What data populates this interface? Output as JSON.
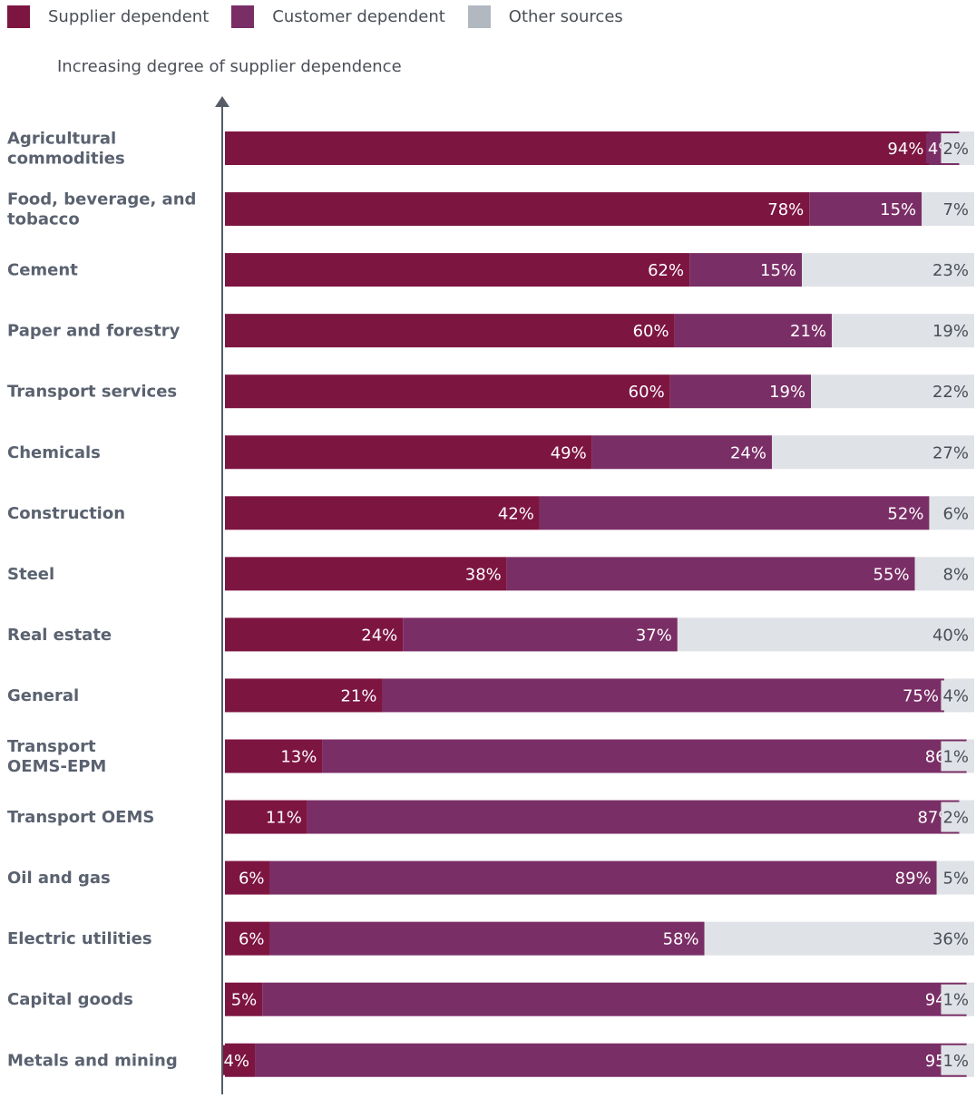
{
  "colors": {
    "supplier": "#7d1541",
    "customer": "#7a2e66",
    "other": "#dfe2e6",
    "legend_other": "#b1b8c0",
    "axis": "#555c66",
    "category_text": "#5a6270",
    "label_light": "#ffffff",
    "label_dark": "#4a4f56"
  },
  "legend": {
    "supplier_label": "Supplier dependent",
    "customer_label": "Customer dependent",
    "other_label": "Other sources"
  },
  "axis_caption": "Increasing degree of supplier dependence",
  "chart_data": {
    "type": "bar",
    "orientation": "horizontal",
    "stacked": true,
    "categories": [
      "Agricultural commodities",
      "Food, beverage, and tobacco",
      "Cement",
      "Paper and forestry",
      "Transport services",
      "Chemicals",
      "Construction",
      "Steel",
      "Real estate",
      "General",
      "Transport OEMS-EPM",
      "Transport OEMS",
      "Oil and gas",
      "Electric utilities",
      "Capital goods",
      "Metals and mining"
    ],
    "series": [
      {
        "name": "Supplier dependent",
        "values": [
          94,
          78,
          62,
          60,
          60,
          49,
          42,
          38,
          24,
          21,
          13,
          11,
          6,
          6,
          5,
          4
        ]
      },
      {
        "name": "Customer dependent",
        "values": [
          4,
          15,
          15,
          21,
          19,
          24,
          52,
          55,
          37,
          75,
          86,
          87,
          89,
          58,
          94,
          95
        ]
      },
      {
        "name": "Other sources",
        "values": [
          2,
          7,
          23,
          19,
          22,
          27,
          6,
          8,
          40,
          4,
          1,
          2,
          5,
          36,
          1,
          1
        ]
      }
    ],
    "value_suffix": "%",
    "legend_position": "top-left",
    "grid": false
  }
}
